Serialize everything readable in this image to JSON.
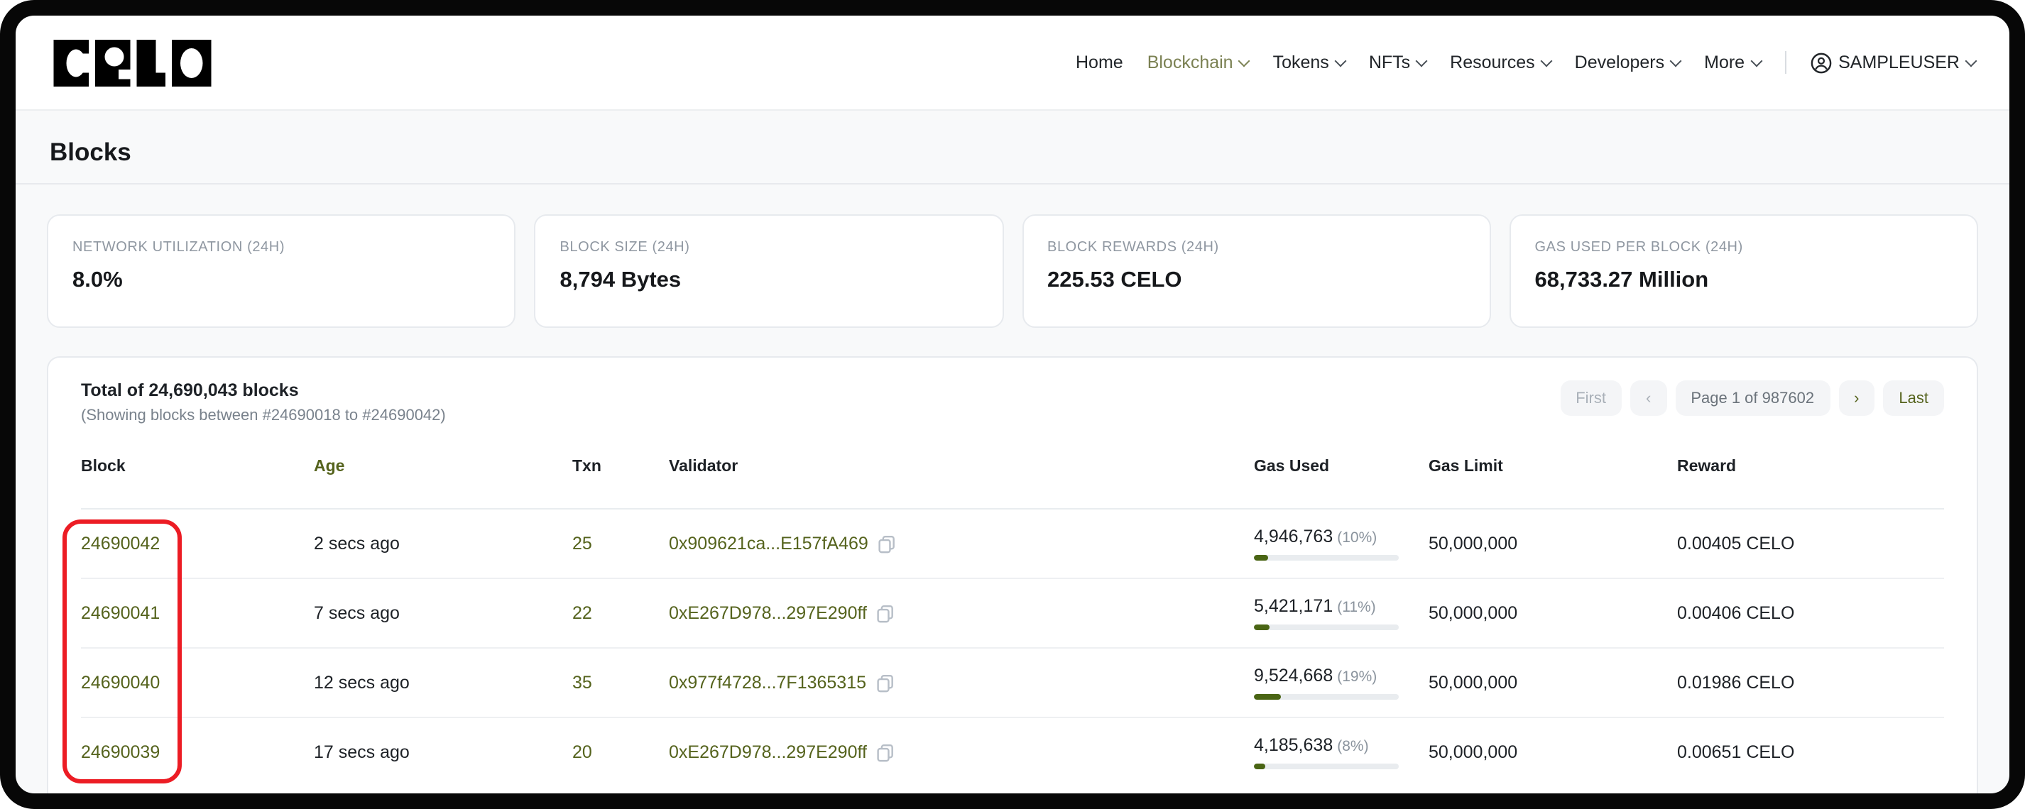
{
  "colors": {
    "accent": "#55631d",
    "accent_muted": "#7b8153",
    "bar_fill": "#4a6514",
    "annotation_red": "#ec1c24"
  },
  "nav": {
    "logo": "CELO",
    "items": [
      {
        "label": "Home",
        "dropdown": false,
        "active": false
      },
      {
        "label": "Blockchain",
        "dropdown": true,
        "active": true
      },
      {
        "label": "Tokens",
        "dropdown": true,
        "active": false
      },
      {
        "label": "NFTs",
        "dropdown": true,
        "active": false
      },
      {
        "label": "Resources",
        "dropdown": true,
        "active": false
      },
      {
        "label": "Developers",
        "dropdown": true,
        "active": false
      },
      {
        "label": "More",
        "dropdown": true,
        "active": false
      }
    ],
    "user": {
      "label": "SAMPLEUSER"
    }
  },
  "page": {
    "title": "Blocks"
  },
  "stats": [
    {
      "label": "NETWORK UTILIZATION (24H)",
      "value": "8.0%"
    },
    {
      "label": "BLOCK SIZE (24H)",
      "value": "8,794 Bytes"
    },
    {
      "label": "BLOCK REWARDS (24H)",
      "value": "225.53 CELO"
    },
    {
      "label": "GAS USED PER BLOCK (24H)",
      "value": "68,733.27 Million"
    }
  ],
  "table": {
    "total_text": "Total of 24,690,043 blocks",
    "range_text": "(Showing blocks between #24690018 to #24690042)",
    "pagination": {
      "first": "First",
      "prev": "‹",
      "page": "Page 1 of 987602",
      "next": "›",
      "last": "Last"
    },
    "columns": [
      "Block",
      "Age",
      "Txn",
      "Validator",
      "Gas Used",
      "Gas Limit",
      "Reward"
    ],
    "rows": [
      {
        "block": "24690042",
        "age": "2 secs ago",
        "txn": "25",
        "validator": "0x909621ca...E157fA469",
        "gas_used": "4,946,763",
        "gas_pct": "(10%)",
        "gas_pct_num": 10,
        "gas_limit": "50,000,000",
        "reward": "0.00405 CELO"
      },
      {
        "block": "24690041",
        "age": "7 secs ago",
        "txn": "22",
        "validator": "0xE267D978...297E290ff",
        "gas_used": "5,421,171",
        "gas_pct": "(11%)",
        "gas_pct_num": 11,
        "gas_limit": "50,000,000",
        "reward": "0.00406 CELO"
      },
      {
        "block": "24690040",
        "age": "12 secs ago",
        "txn": "35",
        "validator": "0x977f4728...7F1365315",
        "gas_used": "9,524,668",
        "gas_pct": "(19%)",
        "gas_pct_num": 19,
        "gas_limit": "50,000,000",
        "reward": "0.01986 CELO"
      },
      {
        "block": "24690039",
        "age": "17 secs ago",
        "txn": "20",
        "validator": "0xE267D978...297E290ff",
        "gas_used": "4,185,638",
        "gas_pct": "(8%)",
        "gas_pct_num": 8,
        "gas_limit": "50,000,000",
        "reward": "0.00651 CELO"
      }
    ]
  }
}
